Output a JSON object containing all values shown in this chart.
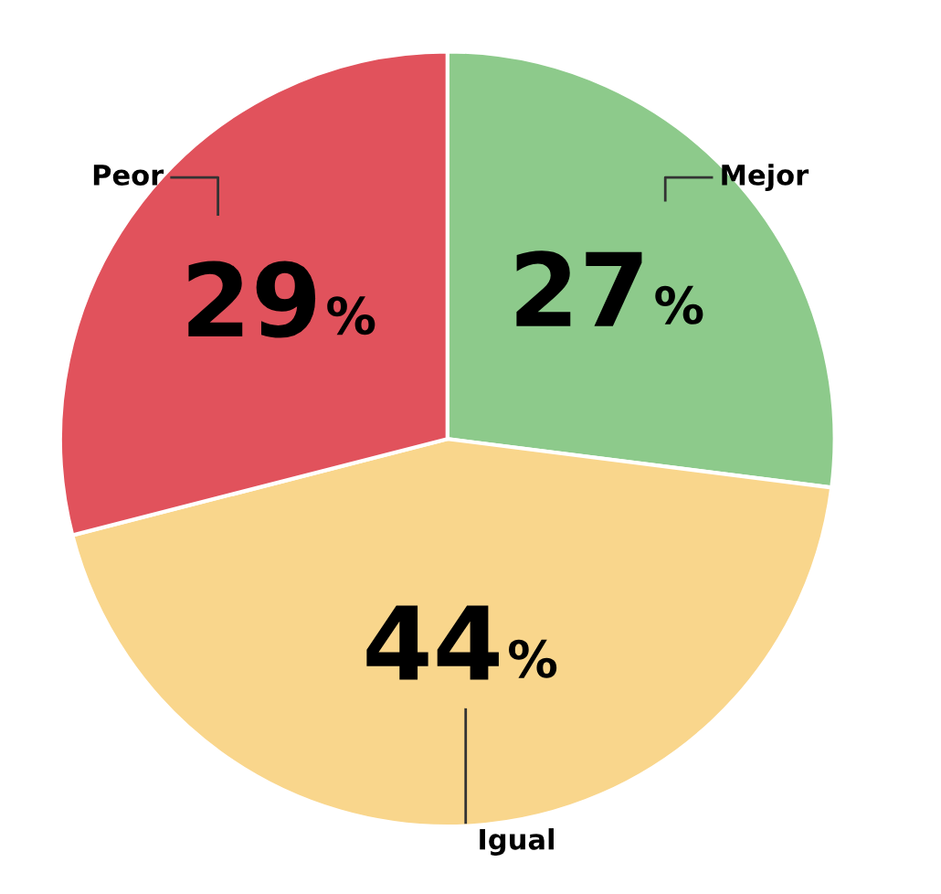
{
  "chart_data": {
    "type": "pie",
    "categories": [
      "Mejor",
      "Igual",
      "Peor"
    ],
    "values": [
      27,
      44,
      29
    ],
    "colors": [
      "#8dca8b",
      "#f9d68c",
      "#e1525c"
    ],
    "value_labels": [
      "27%",
      "44%",
      "29%"
    ]
  }
}
